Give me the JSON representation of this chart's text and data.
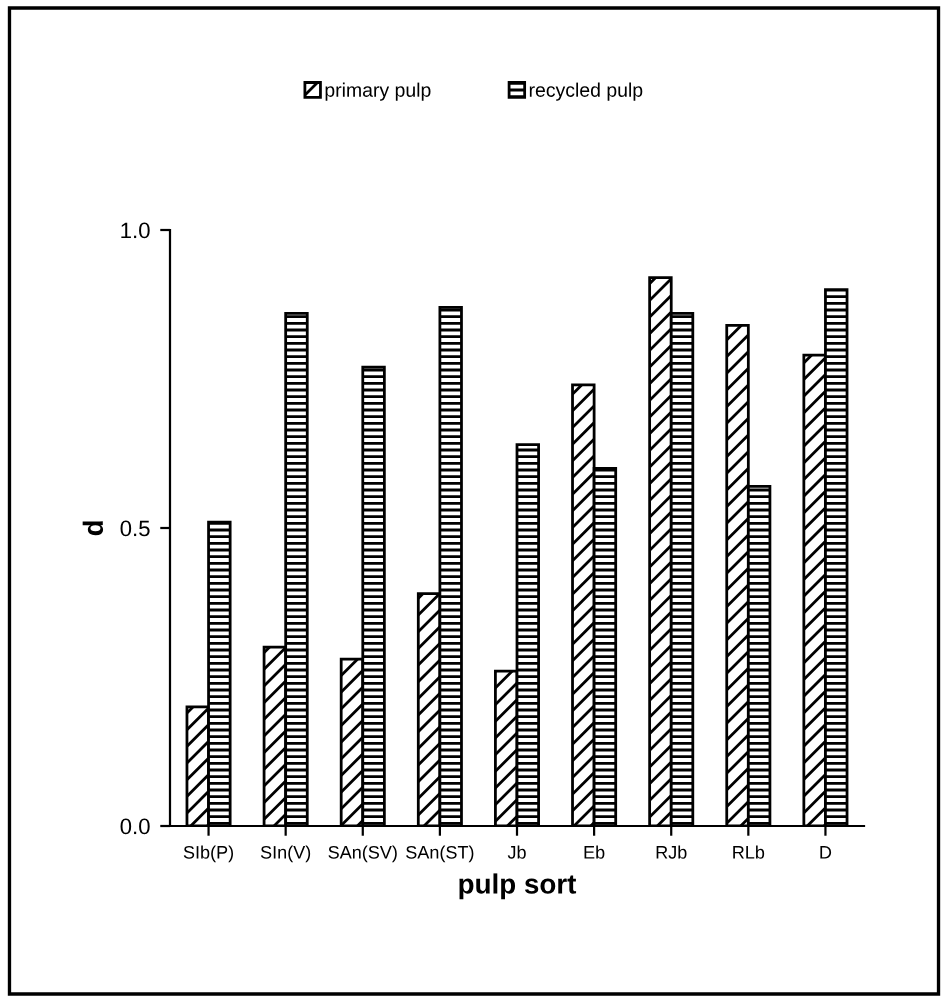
{
  "chart_data": {
    "type": "bar",
    "xlabel": "pulp sort",
    "ylabel": "d",
    "categories": [
      "SIb(P)",
      "SIn(V)",
      "SAn(SV)",
      "SAn(ST)",
      "Jb",
      "Eb",
      "RJb",
      "RLb",
      "D"
    ],
    "series": [
      {
        "name": "primary pulp",
        "color": "#000000",
        "values": [
          0.2,
          0.3,
          0.28,
          0.39,
          0.26,
          0.74,
          0.92,
          0.84,
          0.79
        ]
      },
      {
        "name": "recycled pulp",
        "color": "#000000",
        "values": [
          0.51,
          0.86,
          0.77,
          0.87,
          0.64,
          0.6,
          0.86,
          0.57,
          0.9
        ]
      }
    ],
    "ylim": [
      0,
      1.0
    ],
    "yticks": [
      {
        "value": 0,
        "label": "0.0"
      },
      {
        "value": 0.5,
        "label": "0.5"
      },
      {
        "value": 1.0,
        "label": "1.0"
      }
    ],
    "grid": false,
    "legend": "top"
  }
}
